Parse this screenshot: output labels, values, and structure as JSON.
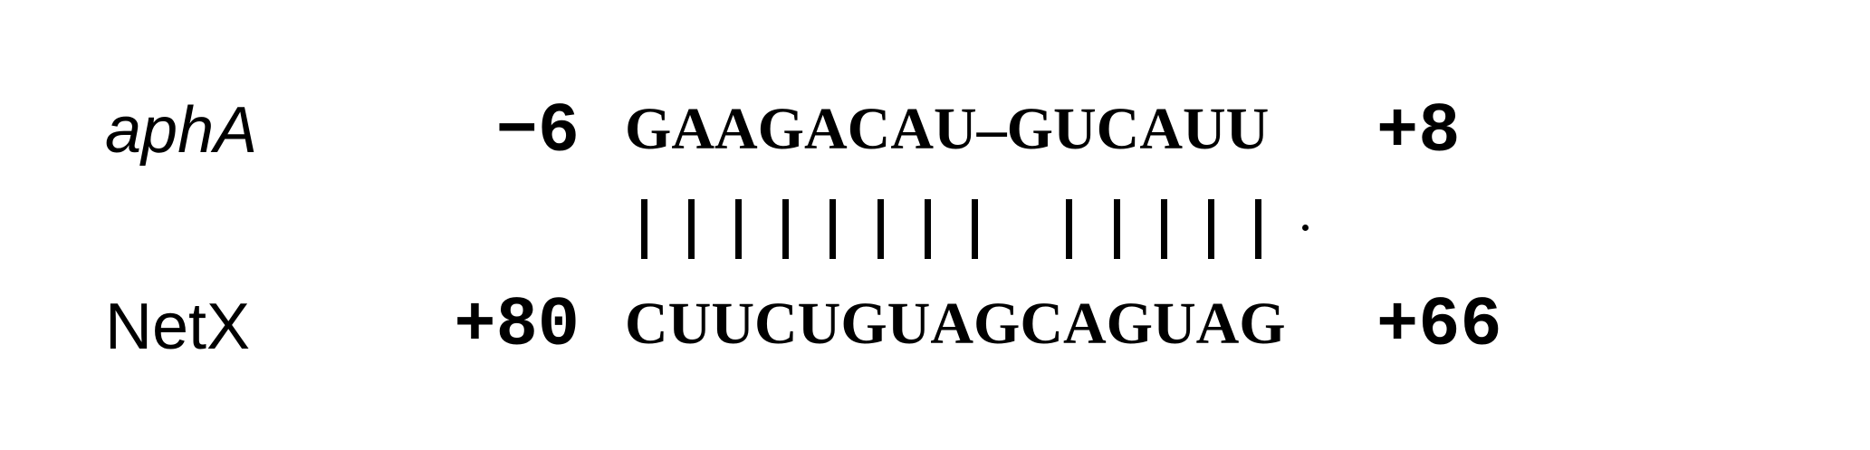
{
  "top_strand": {
    "name": "aphA",
    "start_coord": "−6",
    "sequence": "GAAGACAU–GUCAUU",
    "end_coord": "+8"
  },
  "pairing": {
    "symbols": [
      "|",
      "|",
      "|",
      "|",
      "|",
      "|",
      "|",
      "|",
      " ",
      "|",
      "|",
      "|",
      "|",
      "|",
      "·"
    ]
  },
  "bottom_strand": {
    "name": "NetX",
    "start_coord": "+80",
    "sequence": "CUUCUGUAGCAGUAG",
    "end_coord": "+66"
  }
}
